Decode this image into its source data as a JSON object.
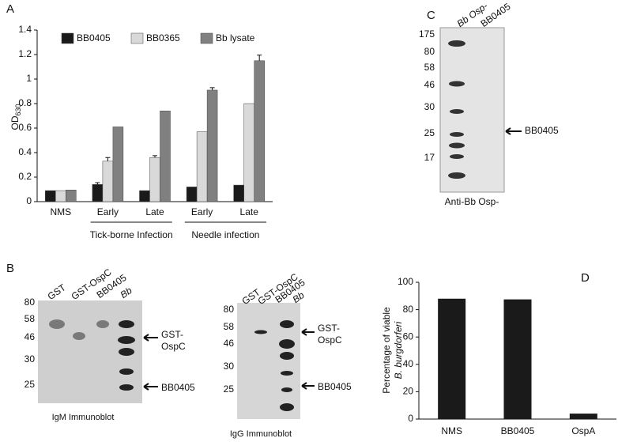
{
  "chart_data": [
    {
      "type": "bar",
      "panel": "A",
      "y_label": "OD",
      "y_label_sub": "630",
      "categories": [
        "NMS",
        "Early",
        "Late",
        "Early",
        "Late"
      ],
      "groups": [
        "Tick-borne Infection",
        "Needle infection"
      ],
      "series": [
        {
          "name": "BB0405",
          "color": "#1a1a1a",
          "values": [
            0.09,
            0.14,
            0.09,
            0.12,
            0.135
          ],
          "errors": [
            null,
            0.015,
            null,
            null,
            null
          ]
        },
        {
          "name": "BB0365",
          "color": "#d9d9d9",
          "values": [
            0.09,
            0.33,
            0.36,
            0.57,
            0.8
          ],
          "errors": [
            null,
            0.03,
            0.015,
            null,
            null
          ]
        },
        {
          "name": "Bb lysate",
          "color": "#808080",
          "values": [
            0.095,
            0.61,
            0.74,
            0.91,
            1.15
          ],
          "errors": [
            null,
            null,
            null,
            0.02,
            0.045
          ]
        }
      ],
      "ylim": [
        0,
        1.4
      ],
      "yticks": [
        0,
        0.2,
        0.4,
        0.6,
        0.8,
        1,
        1.2,
        1.4
      ]
    },
    {
      "type": "bar",
      "panel": "D",
      "y_label": [
        "Percentage of viable",
        "B. burgdorferi"
      ],
      "categories": [
        "NMS",
        "BB0405",
        "OspA"
      ],
      "values": [
        88,
        87.5,
        4
      ],
      "color": "#1a1a1a",
      "ylim": [
        0,
        100
      ],
      "yticks": [
        0,
        20,
        40,
        60,
        80,
        100
      ]
    }
  ],
  "panels": {
    "B": {
      "label": "B",
      "left": {
        "lanes": [
          "GST",
          "GST-OspC",
          "BB0405",
          "Bb"
        ],
        "markers": [
          "80",
          "58",
          "46",
          "30",
          "25"
        ],
        "arrows": [
          [
            "GST-",
            "OspC"
          ],
          [
            "BB0405"
          ]
        ],
        "caption": "IgM Immunoblot"
      },
      "right": {
        "lanes": [
          "GST",
          "GST-OspC",
          "BB0405",
          "Bb"
        ],
        "markers": [
          "80",
          "58",
          "46",
          "30",
          "25"
        ],
        "arrows": [
          [
            "GST-",
            "OspC"
          ],
          [
            "BB0405"
          ]
        ],
        "caption": "IgG Immunoblot"
      }
    },
    "C": {
      "label": "C",
      "lanes": [
        "Bb Osp-",
        "BB0405"
      ],
      "markers": [
        "175",
        "80",
        "58",
        "46",
        "30",
        "25",
        "17"
      ],
      "arrow": "BB0405",
      "caption": "Anti-Bb Osp-"
    }
  }
}
